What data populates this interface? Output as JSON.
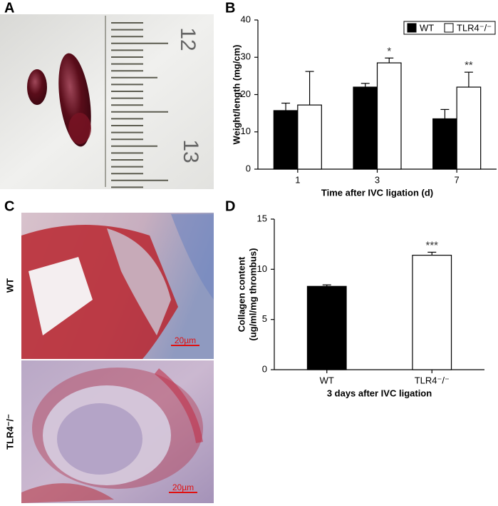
{
  "panel_labels": [
    "A",
    "B",
    "C",
    "D"
  ],
  "photo": {
    "ruler_labels": [
      "12",
      "13"
    ]
  },
  "histology": {
    "rows": [
      {
        "label": "WT",
        "scale_bar": "20µm"
      },
      {
        "label": "TLR4⁻/⁻",
        "scale_bar": "20µm"
      }
    ]
  },
  "chart_data": [
    {
      "type": "bar",
      "ylabel": "Weight/length (mg/cm)",
      "xlabel": "Time after IVC ligation (d)",
      "categories": [
        "1",
        "3",
        "7"
      ],
      "series": [
        {
          "name": "WT",
          "color": "#000000",
          "values": [
            15.7,
            22,
            13.5
          ],
          "errors": [
            2,
            1,
            2.5
          ],
          "significance": [
            null,
            null,
            null
          ]
        },
        {
          "name": "TLR4⁻/⁻",
          "color": "#ffffff",
          "values": [
            17.2,
            28.5,
            22
          ],
          "errors": [
            9,
            1.3,
            4
          ],
          "significance": [
            null,
            "*",
            "**"
          ]
        }
      ],
      "ylim": [
        0,
        40
      ],
      "yticks": [
        0,
        10,
        20,
        30,
        40
      ],
      "legend": "top-right",
      "edgecolor": "#000000"
    },
    {
      "type": "bar",
      "ylabel": [
        "Collagen content",
        "(ug/ml/mg thrombus)"
      ],
      "xlabel": "3 days after IVC ligation",
      "categories": [
        "WT",
        "TLR4⁻/⁻"
      ],
      "values": [
        8.3,
        11.4
      ],
      "errors": [
        0.15,
        0.3
      ],
      "colors": [
        "#000000",
        "#ffffff"
      ],
      "significance": [
        null,
        "***"
      ],
      "ylim": [
        0,
        15
      ],
      "yticks": [
        0,
        5,
        10,
        15
      ],
      "edgecolor": "#000000"
    }
  ]
}
